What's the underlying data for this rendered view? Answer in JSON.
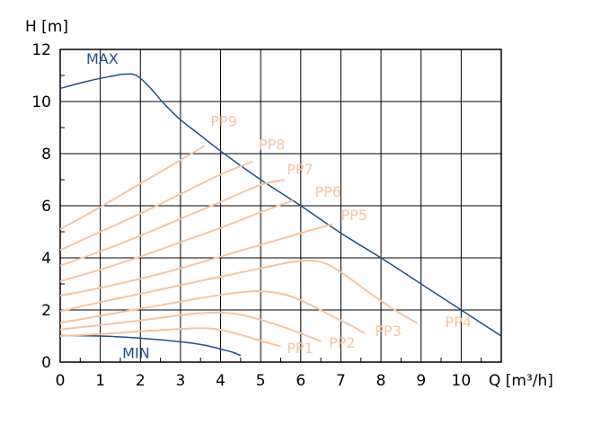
{
  "chart_data": {
    "type": "line",
    "xlabel": "Q [m³/h]",
    "ylabel": "H [m]",
    "xlim": [
      0,
      11
    ],
    "ylim": [
      0,
      12
    ],
    "x_ticks": [
      "0",
      "1",
      "2",
      "3",
      "4",
      "5",
      "6",
      "7",
      "8",
      "9",
      "10"
    ],
    "y_ticks": [
      "0",
      "2",
      "4",
      "6",
      "8",
      "10",
      "12"
    ],
    "grid": true,
    "colors": {
      "max_min": "#1f4e8c",
      "pp": "#f5c4a1",
      "grid": "#000000"
    },
    "series": [
      {
        "name": "MAX",
        "kind": "max",
        "label_at": [
          0.65,
          11.45
        ],
        "points": [
          [
            0,
            10.5
          ],
          [
            0.6,
            10.75
          ],
          [
            1.2,
            10.95
          ],
          [
            1.6,
            11.05
          ],
          [
            1.9,
            11.0
          ],
          [
            2.2,
            10.6
          ],
          [
            2.6,
            9.9
          ],
          [
            3.0,
            9.3
          ],
          [
            3.5,
            8.7
          ],
          [
            4.0,
            8.1
          ],
          [
            5.0,
            7.0
          ],
          [
            6.0,
            6.0
          ],
          [
            7.0,
            4.95
          ],
          [
            8.0,
            4.0
          ],
          [
            9.0,
            3.0
          ],
          [
            10.0,
            2.0
          ],
          [
            11.0,
            1.0
          ]
        ]
      },
      {
        "name": "MIN",
        "kind": "min",
        "label_at": [
          1.55,
          0.15
        ],
        "points": [
          [
            0,
            1.02
          ],
          [
            1.0,
            1.0
          ],
          [
            2.0,
            0.92
          ],
          [
            3.0,
            0.78
          ],
          [
            3.6,
            0.65
          ],
          [
            4.0,
            0.5
          ],
          [
            4.3,
            0.38
          ],
          [
            4.5,
            0.25
          ]
        ]
      },
      {
        "name": "PP1",
        "kind": "pp",
        "label_at": [
          5.65,
          0.35
        ],
        "points": [
          [
            0,
            1.0
          ],
          [
            1.0,
            1.08
          ],
          [
            2.0,
            1.18
          ],
          [
            3.0,
            1.27
          ],
          [
            3.6,
            1.3
          ],
          [
            4.0,
            1.24
          ],
          [
            4.5,
            1.05
          ],
          [
            5.0,
            0.82
          ],
          [
            5.5,
            0.6
          ]
        ]
      },
      {
        "name": "PP2",
        "kind": "pp",
        "label_at": [
          6.7,
          0.55
        ],
        "points": [
          [
            0,
            1.25
          ],
          [
            1.0,
            1.42
          ],
          [
            2.0,
            1.6
          ],
          [
            3.0,
            1.8
          ],
          [
            3.5,
            1.88
          ],
          [
            4.0,
            1.9
          ],
          [
            4.5,
            1.82
          ],
          [
            5.0,
            1.62
          ],
          [
            5.5,
            1.38
          ],
          [
            6.0,
            1.1
          ],
          [
            6.5,
            0.8
          ]
        ]
      },
      {
        "name": "PP3",
        "kind": "pp",
        "label_at": [
          7.85,
          1.0
        ],
        "points": [
          [
            0,
            1.5
          ],
          [
            1.0,
            1.78
          ],
          [
            2.0,
            2.05
          ],
          [
            3.0,
            2.32
          ],
          [
            4.0,
            2.58
          ],
          [
            4.8,
            2.72
          ],
          [
            5.3,
            2.68
          ],
          [
            5.8,
            2.5
          ],
          [
            6.3,
            2.15
          ],
          [
            6.8,
            1.75
          ],
          [
            7.2,
            1.45
          ],
          [
            7.6,
            1.1
          ]
        ]
      },
      {
        "name": "PP4",
        "kind": "pp",
        "label_at": [
          9.6,
          1.35
        ],
        "points": [
          [
            0,
            1.95
          ],
          [
            1.0,
            2.3
          ],
          [
            2.0,
            2.62
          ],
          [
            3.0,
            2.95
          ],
          [
            4.0,
            3.28
          ],
          [
            5.0,
            3.6
          ],
          [
            5.8,
            3.85
          ],
          [
            6.2,
            3.9
          ],
          [
            6.6,
            3.8
          ],
          [
            7.0,
            3.45
          ],
          [
            7.5,
            2.9
          ],
          [
            8.0,
            2.35
          ],
          [
            8.5,
            1.85
          ],
          [
            8.9,
            1.5
          ]
        ]
      },
      {
        "name": "PP5",
        "kind": "pp",
        "label_at": [
          7.0,
          5.45
        ],
        "points": [
          [
            0,
            2.55
          ],
          [
            1.0,
            2.85
          ],
          [
            2.0,
            3.2
          ],
          [
            3.0,
            3.6
          ],
          [
            4.0,
            4.05
          ],
          [
            5.0,
            4.5
          ],
          [
            6.0,
            4.95
          ],
          [
            6.8,
            5.3
          ]
        ]
      },
      {
        "name": "PP6",
        "kind": "pp",
        "label_at": [
          6.35,
          6.35
        ],
        "points": [
          [
            0,
            3.1
          ],
          [
            1.0,
            3.55
          ],
          [
            2.0,
            4.05
          ],
          [
            3.0,
            4.6
          ],
          [
            4.0,
            5.15
          ],
          [
            5.0,
            5.75
          ],
          [
            5.8,
            6.2
          ]
        ]
      },
      {
        "name": "PP7",
        "kind": "pp",
        "label_at": [
          5.65,
          7.2
        ],
        "points": [
          [
            0,
            3.7
          ],
          [
            1.0,
            4.25
          ],
          [
            2.0,
            4.85
          ],
          [
            3.0,
            5.5
          ],
          [
            4.0,
            6.15
          ],
          [
            5.0,
            6.8
          ],
          [
            5.6,
            7.0
          ]
        ]
      },
      {
        "name": "PP8",
        "kind": "pp",
        "label_at": [
          4.95,
          8.15
        ],
        "points": [
          [
            0,
            4.3
          ],
          [
            1.0,
            5.0
          ],
          [
            2.0,
            5.7
          ],
          [
            3.0,
            6.45
          ],
          [
            4.0,
            7.2
          ],
          [
            4.8,
            7.7
          ]
        ]
      },
      {
        "name": "PP9",
        "kind": "pp",
        "label_at": [
          3.75,
          9.05
        ],
        "points": [
          [
            0,
            5.1
          ],
          [
            1.0,
            5.95
          ],
          [
            2.0,
            6.85
          ],
          [
            3.0,
            7.75
          ],
          [
            3.6,
            8.3
          ]
        ]
      }
    ]
  }
}
